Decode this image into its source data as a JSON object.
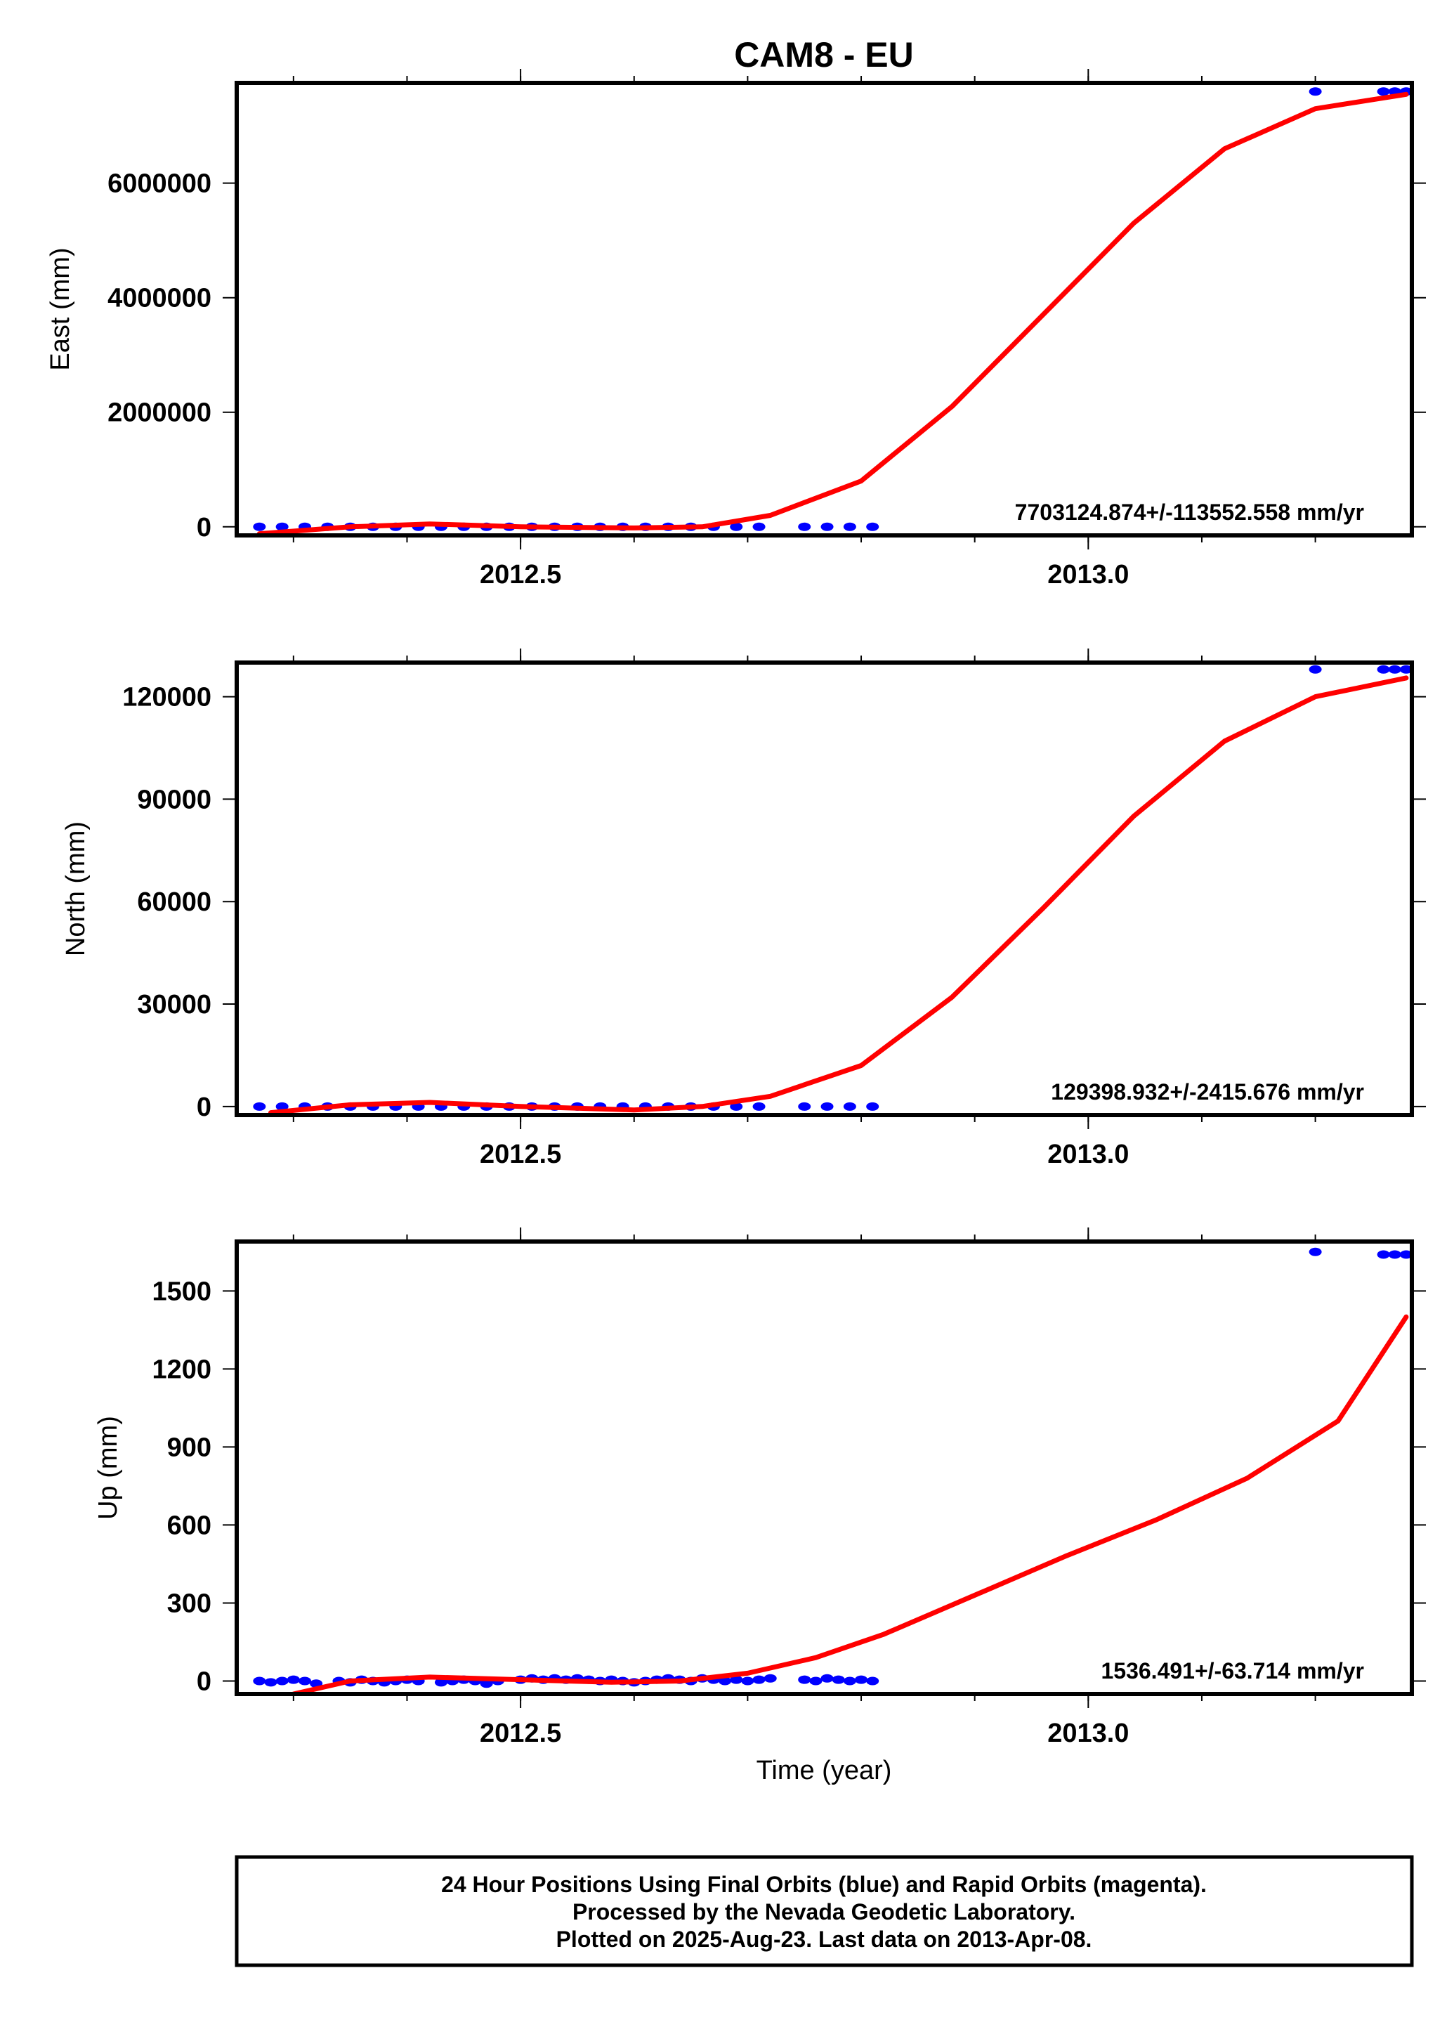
{
  "chart_data": [
    {
      "type": "scatter",
      "title": "CAM8 - EU",
      "ylabel": "East (mm)",
      "xlabel": "",
      "xlim": [
        2012.25,
        2013.285
      ],
      "ylim": [
        -150000,
        7750000
      ],
      "x_ticks": [
        2012.5,
        2013.0
      ],
      "x_tick_labels": [
        "2012.5",
        "2013.0"
      ],
      "y_ticks": [
        0,
        2000000,
        4000000,
        6000000
      ],
      "y_tick_labels": [
        "0",
        "2000000",
        "4000000",
        "6000000"
      ],
      "rate_text": "7703124.874+/-113552.558 mm/yr",
      "series": [
        {
          "color": "#0000ff",
          "kind": "points",
          "x": [
            2012.27,
            2012.29,
            2012.31,
            2012.33,
            2012.35,
            2012.37,
            2012.39,
            2012.41,
            2012.43,
            2012.45,
            2012.47,
            2012.49,
            2012.51,
            2012.53,
            2012.55,
            2012.57,
            2012.59,
            2012.61,
            2012.63,
            2012.65,
            2012.67,
            2012.69,
            2012.71,
            2012.75,
            2012.77,
            2012.79,
            2012.81,
            2013.2,
            2013.26,
            2013.27,
            2013.28
          ],
          "y": [
            0,
            0,
            0,
            0,
            0,
            0,
            0,
            0,
            0,
            0,
            0,
            0,
            0,
            0,
            0,
            0,
            0,
            0,
            0,
            0,
            0,
            0,
            0,
            0,
            0,
            0,
            0,
            7600000,
            7600000,
            7600000,
            7600000
          ]
        },
        {
          "color": "#ff0000",
          "kind": "line",
          "x": [
            2012.27,
            2012.35,
            2012.42,
            2012.5,
            2012.6,
            2012.66,
            2012.72,
            2012.8,
            2012.88,
            2012.96,
            2013.04,
            2013.12,
            2013.2,
            2013.28
          ],
          "y": [
            -120000,
            0,
            50000,
            0,
            -20000,
            0,
            200000,
            800000,
            2100000,
            3700000,
            5300000,
            6600000,
            7300000,
            7550000
          ]
        }
      ]
    },
    {
      "type": "scatter",
      "ylabel": "North (mm)",
      "xlabel": "",
      "xlim": [
        2012.25,
        2013.285
      ],
      "ylim": [
        -2500,
        130000
      ],
      "x_ticks": [
        2012.5,
        2013.0
      ],
      "x_tick_labels": [
        "2012.5",
        "2013.0"
      ],
      "y_ticks": [
        0,
        30000,
        60000,
        90000,
        120000
      ],
      "y_tick_labels": [
        "0",
        "30000",
        "60000",
        "90000",
        "120000"
      ],
      "rate_text": "129398.932+/-2415.676 mm/yr",
      "series": [
        {
          "color": "#0000ff",
          "kind": "points",
          "x": [
            2012.27,
            2012.29,
            2012.31,
            2012.33,
            2012.35,
            2012.37,
            2012.39,
            2012.41,
            2012.43,
            2012.45,
            2012.47,
            2012.49,
            2012.51,
            2012.53,
            2012.55,
            2012.57,
            2012.59,
            2012.61,
            2012.63,
            2012.65,
            2012.67,
            2012.69,
            2012.71,
            2012.75,
            2012.77,
            2012.79,
            2012.81,
            2013.2,
            2013.26,
            2013.27,
            2013.28
          ],
          "y": [
            0,
            0,
            0,
            0,
            0,
            0,
            0,
            0,
            0,
            0,
            0,
            0,
            0,
            0,
            0,
            0,
            0,
            0,
            0,
            0,
            0,
            0,
            0,
            0,
            0,
            0,
            0,
            128000,
            128000,
            128000,
            128000
          ]
        },
        {
          "color": "#ff0000",
          "kind": "line",
          "x": [
            2012.28,
            2012.35,
            2012.42,
            2012.5,
            2012.6,
            2012.66,
            2012.72,
            2012.8,
            2012.88,
            2012.96,
            2013.04,
            2013.12,
            2013.2,
            2013.28
          ],
          "y": [
            -1800,
            500,
            1200,
            0,
            -1000,
            0,
            3000,
            12000,
            32000,
            58000,
            85000,
            107000,
            120000,
            125500
          ]
        }
      ]
    },
    {
      "type": "scatter",
      "ylabel": "Up (mm)",
      "xlabel": "Time (year)",
      "xlim": [
        2012.25,
        2013.285
      ],
      "ylim": [
        -50,
        1690
      ],
      "x_ticks": [
        2012.5,
        2013.0
      ],
      "x_tick_labels": [
        "2012.5",
        "2013.0"
      ],
      "y_ticks": [
        0,
        300,
        600,
        900,
        1200,
        1500
      ],
      "y_tick_labels": [
        "0",
        "300",
        "600",
        "900",
        "1200",
        "1500"
      ],
      "rate_text": "1536.491+/-63.714 mm/yr",
      "series": [
        {
          "color": "#0000ff",
          "kind": "points",
          "x": [
            2012.27,
            2012.28,
            2012.29,
            2012.3,
            2012.31,
            2012.32,
            2012.34,
            2012.35,
            2012.36,
            2012.37,
            2012.38,
            2012.39,
            2012.4,
            2012.41,
            2012.43,
            2012.44,
            2012.45,
            2012.46,
            2012.47,
            2012.48,
            2012.5,
            2012.51,
            2012.52,
            2012.53,
            2012.54,
            2012.55,
            2012.56,
            2012.57,
            2012.58,
            2012.59,
            2012.6,
            2012.61,
            2012.62,
            2012.63,
            2012.64,
            2012.65,
            2012.66,
            2012.67,
            2012.68,
            2012.69,
            2012.7,
            2012.71,
            2012.72,
            2012.75,
            2012.76,
            2012.77,
            2012.78,
            2012.79,
            2012.8,
            2012.81,
            2013.2,
            2013.26,
            2013.27,
            2013.28
          ],
          "y": [
            0,
            -5,
            0,
            5,
            0,
            -10,
            0,
            -5,
            5,
            0,
            -5,
            0,
            5,
            0,
            -5,
            0,
            5,
            0,
            -10,
            0,
            5,
            10,
            5,
            10,
            5,
            10,
            5,
            0,
            5,
            0,
            -5,
            0,
            5,
            10,
            5,
            0,
            10,
            5,
            0,
            5,
            0,
            5,
            10,
            5,
            0,
            10,
            5,
            0,
            5,
            0,
            1650,
            1640,
            1640,
            1640
          ]
        },
        {
          "color": "#ff0000",
          "kind": "line",
          "x": [
            2012.3,
            2012.35,
            2012.42,
            2012.5,
            2012.58,
            2012.64,
            2012.7,
            2012.76,
            2012.82,
            2012.9,
            2012.98,
            2013.06,
            2013.14,
            2013.22,
            2013.28
          ],
          "y": [
            -50,
            0,
            15,
            5,
            -5,
            0,
            30,
            90,
            180,
            330,
            480,
            620,
            780,
            1000,
            1400
          ]
        }
      ]
    }
  ],
  "footer": {
    "line1": "24 Hour Positions Using Final Orbits (blue) and Rapid Orbits (magenta).",
    "line2": "Processed by the Nevada Geodetic Laboratory.",
    "line3": "Plotted on 2025-Aug-23. Last data on 2013-Apr-08."
  }
}
